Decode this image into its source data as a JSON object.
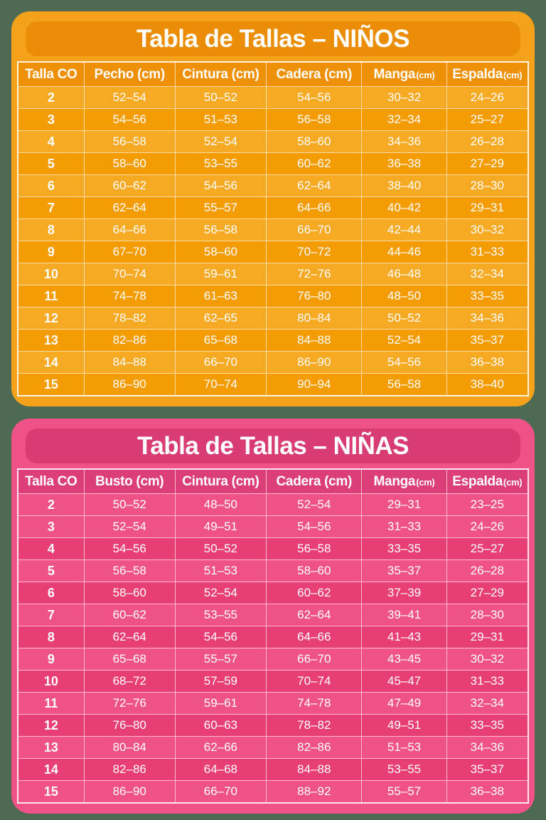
{
  "page": {
    "background_color": "#4d6b52",
    "text_color": "#ffffff"
  },
  "chart_data": [
    {
      "type": "table",
      "id": "ninos",
      "title": "Tabla de Tallas – NIÑOS",
      "theme": {
        "panel": "#F4A11B",
        "banner": "#EB8D06",
        "header_bg": "#EE9108",
        "row_light": "#F6A922",
        "row_dark": "#F39C03",
        "text": "#FFFFFF"
      },
      "columns": [
        {
          "label": "Talla CO",
          "unit": "",
          "small_unit": false
        },
        {
          "label": "Pecho",
          "unit": "(cm)",
          "small_unit": false
        },
        {
          "label": "Cintura",
          "unit": "(cm)",
          "small_unit": false
        },
        {
          "label": "Cadera",
          "unit": "(cm)",
          "small_unit": false
        },
        {
          "label": "Manga",
          "unit": "(cm)",
          "small_unit": true
        },
        {
          "label": "Espalda",
          "unit": "(cm)",
          "small_unit": true
        }
      ],
      "rows": [
        [
          "2",
          "52–54",
          "50–52",
          "54–56",
          "30–32",
          "24–26"
        ],
        [
          "3",
          "54–56",
          "51–53",
          "56–58",
          "32–34",
          "25–27"
        ],
        [
          "4",
          "56–58",
          "52–54",
          "58–60",
          "34–36",
          "26–28"
        ],
        [
          "5",
          "58–60",
          "53–55",
          "60–62",
          "36–38",
          "27–29"
        ],
        [
          "6",
          "60–62",
          "54–56",
          "62–64",
          "38–40",
          "28–30"
        ],
        [
          "7",
          "62–64",
          "55–57",
          "64–66",
          "40–42",
          "29–31"
        ],
        [
          "8",
          "64–66",
          "56–58",
          "66–70",
          "42–44",
          "30–32"
        ],
        [
          "9",
          "67–70",
          "58–60",
          "70–72",
          "44–46",
          "31–33"
        ],
        [
          "10",
          "70–74",
          "59–61",
          "72–76",
          "46–48",
          "32–34"
        ],
        [
          "11",
          "74–78",
          "61–63",
          "76–80",
          "48–50",
          "33–35"
        ],
        [
          "12",
          "78–82",
          "62–65",
          "80–84",
          "50–52",
          "34–36"
        ],
        [
          "13",
          "82–86",
          "65–68",
          "84–88",
          "52–54",
          "35–37"
        ],
        [
          "14",
          "84–88",
          "66–70",
          "86–90",
          "54–56",
          "36–38"
        ],
        [
          "15",
          "86–90",
          "70–74",
          "90–94",
          "56–58",
          "38–40"
        ]
      ],
      "dark_row_sizes": [
        "3",
        "5",
        "7",
        "9",
        "11",
        "13",
        "15"
      ]
    },
    {
      "type": "table",
      "id": "ninas",
      "title": "Tabla de Tallas – NIÑAS",
      "theme": {
        "panel": "#EF5287",
        "banner": "#D93B73",
        "header_bg": "#DC3E77",
        "row_light": "#EF5287",
        "row_dark": "#E73E75",
        "text": "#FFFFFF"
      },
      "columns": [
        {
          "label": "Talla CO",
          "unit": "",
          "small_unit": false
        },
        {
          "label": "Busto",
          "unit": "(cm)",
          "small_unit": false
        },
        {
          "label": "Cintura",
          "unit": "(cm)",
          "small_unit": false
        },
        {
          "label": "Cadera",
          "unit": "(cm)",
          "small_unit": false
        },
        {
          "label": "Manga",
          "unit": "(cm)",
          "small_unit": true
        },
        {
          "label": "Espalda",
          "unit": "(cm)",
          "small_unit": true
        }
      ],
      "rows": [
        [
          "2",
          "50–52",
          "48–50",
          "52–54",
          "29–31",
          "23–25"
        ],
        [
          "3",
          "52–54",
          "49–51",
          "54–56",
          "31–33",
          "24–26"
        ],
        [
          "4",
          "54–56",
          "50–52",
          "56–58",
          "33–35",
          "25–27"
        ],
        [
          "5",
          "56–58",
          "51–53",
          "58–60",
          "35–37",
          "26–28"
        ],
        [
          "6",
          "58–60",
          "52–54",
          "60–62",
          "37–39",
          "27–29"
        ],
        [
          "7",
          "60–62",
          "53–55",
          "62–64",
          "39–41",
          "28–30"
        ],
        [
          "8",
          "62–64",
          "54–56",
          "64–66",
          "41–43",
          "29–31"
        ],
        [
          "9",
          "65–68",
          "55–57",
          "66–70",
          "43–45",
          "30–32"
        ],
        [
          "10",
          "68–72",
          "57–59",
          "70–74",
          "45–47",
          "31–33"
        ],
        [
          "11",
          "72–76",
          "59–61",
          "74–78",
          "47–49",
          "32–34"
        ],
        [
          "12",
          "76–80",
          "60–63",
          "78–82",
          "49–51",
          "33–35"
        ],
        [
          "13",
          "80–84",
          "62–66",
          "82–86",
          "51–53",
          "34–36"
        ],
        [
          "14",
          "82–86",
          "64–68",
          "84–88",
          "53–55",
          "35–37"
        ],
        [
          "15",
          "86–90",
          "66–70",
          "88–92",
          "55–57",
          "36–38"
        ]
      ],
      "dark_row_sizes": [
        "4",
        "6",
        "8",
        "10",
        "12",
        "14"
      ]
    }
  ]
}
